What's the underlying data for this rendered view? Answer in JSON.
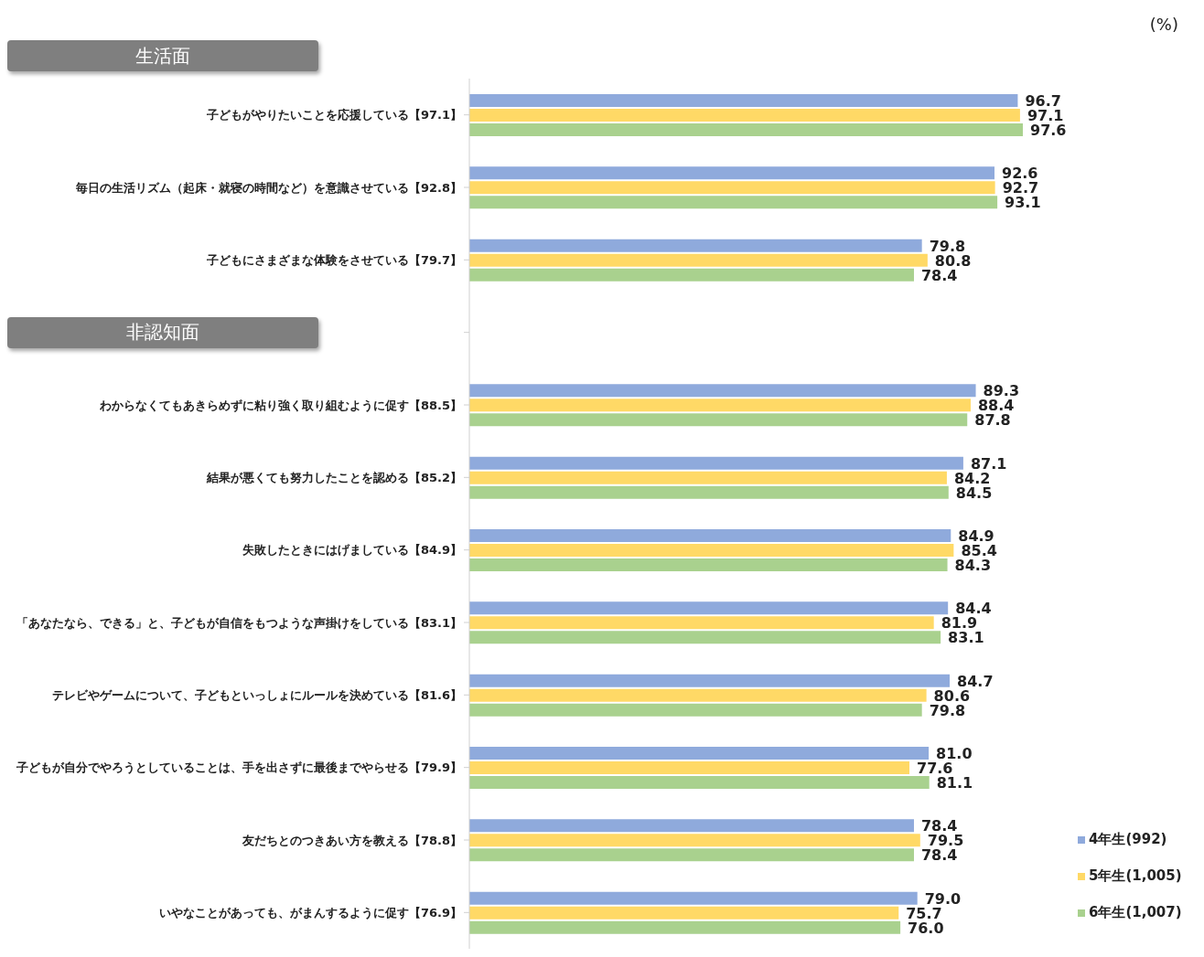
{
  "chart_data": {
    "type": "bar",
    "orientation": "horizontal",
    "annotations": [
      "(%)",
      "生活面",
      "非認知面"
    ],
    "categories": [
      "子どもがやりたいことを応援している【97.1】",
      "毎日の生活リズム（起床・就寝の時間など）を意識させている【92.8】",
      "子どもにさまざまな体験をさせている【79.7】",
      null,
      "わからなくてもあきらめずに粘り強く取り組むように促す【88.5】",
      "結果が悪くても努力したことを認める【85.2】",
      "失敗したときにはげましている【84.9】",
      "「あなたなら、できる」と、子どもが自信をもつような声掛けをしている【83.1】",
      "テレビやゲームについて、子どもといっしょにルールを決めている【81.6】",
      "子どもが自分でやろうとしていることは、手を出さずに最後までやらせる【79.9】",
      "友だちとのつきあい方を教える【78.8】",
      "いやなことがあっても、がまんするように促す【76.9】"
    ],
    "series": [
      {
        "name": "4年生(992)",
        "color": "#8faadc",
        "values": [
          96.7,
          92.6,
          79.8,
          null,
          89.3,
          87.1,
          84.9,
          84.4,
          84.7,
          81.0,
          78.4,
          79.0
        ],
        "value_labels": [
          "96.7",
          "92.6",
          "79.8",
          null,
          "89.3",
          "87.1",
          "84.9",
          "84.4",
          "84.7",
          "81.0",
          "78.4",
          "79.0"
        ]
      },
      {
        "name": "5年生(1,005)",
        "color": "#ffd966",
        "values": [
          97.1,
          92.7,
          80.8,
          null,
          88.4,
          84.2,
          85.4,
          81.9,
          80.6,
          77.6,
          79.5,
          75.7
        ],
        "value_labels": [
          "97.1",
          "92.7",
          "80.8",
          null,
          "88.4",
          "84.2",
          "85.4",
          "81.9",
          "80.6",
          "77.6",
          "79.5",
          "75.7"
        ]
      },
      {
        "name": "6年生(1,007)",
        "color": "#a9d18e",
        "values": [
          97.6,
          93.1,
          78.4,
          null,
          87.8,
          84.5,
          84.3,
          83.1,
          79.8,
          81.1,
          78.4,
          76.0
        ],
        "value_labels": [
          "97.6",
          "93.1",
          "78.4",
          null,
          "87.8",
          "84.5",
          "84.3",
          "83.1",
          "79.8",
          "81.1",
          "78.4",
          "76.0"
        ]
      }
    ],
    "legend": "bottom right"
  }
}
